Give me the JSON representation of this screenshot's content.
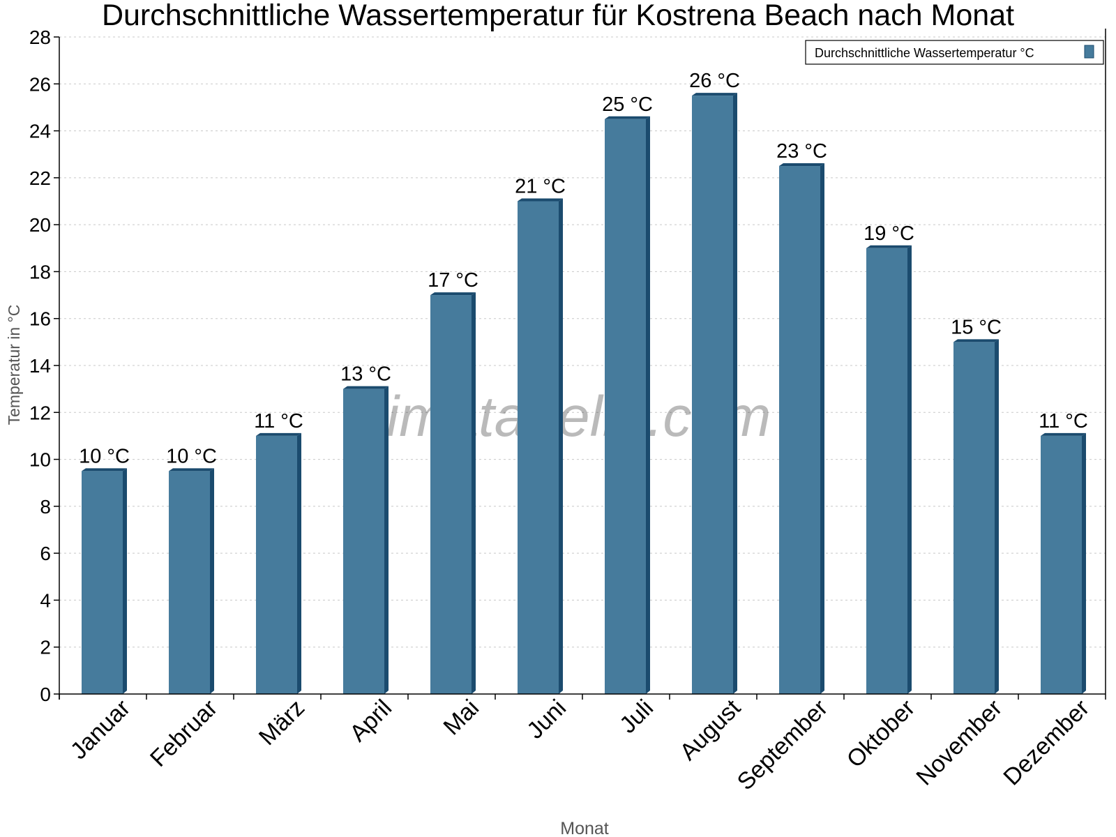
{
  "chart_data": {
    "type": "bar",
    "title": "Durchschnittliche Wassertemperatur für Kostrena Beach nach Monat",
    "xlabel": "Monat",
    "ylabel": "Temperatur in °C",
    "ylim": [
      0,
      28
    ],
    "yticks": [
      0,
      2,
      4,
      6,
      8,
      10,
      12,
      14,
      16,
      18,
      20,
      22,
      24,
      26,
      28
    ],
    "grid": true,
    "legend_placement": "top-right",
    "categories": [
      "Januar",
      "Februar",
      "März",
      "April",
      "Mai",
      "Juni",
      "Juli",
      "August",
      "September",
      "Oktober",
      "November",
      "Dezember"
    ],
    "series": [
      {
        "name": "Durchschnittliche Wassertemperatur °C",
        "values": [
          9.5,
          9.5,
          11,
          13,
          17,
          21,
          24.5,
          25.5,
          22.5,
          19,
          15,
          11
        ],
        "labels": [
          "10 °C",
          "10 °C",
          "11 °C",
          "13 °C",
          "17 °C",
          "21 °C",
          "25 °C",
          "26 °C",
          "23 °C",
          "19 °C",
          "15 °C",
          "11 °C"
        ]
      }
    ],
    "colors": {
      "bar": "#467b9c",
      "bar_side": "#1b4b6e",
      "grid": "#c8c8c8"
    },
    "watermark": "klimatabelle.com"
  }
}
